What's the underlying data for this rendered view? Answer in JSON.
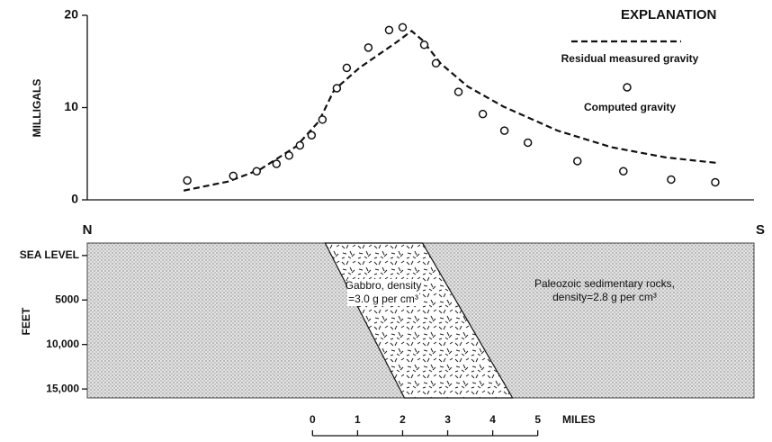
{
  "chart_data": {
    "type": "line",
    "y_label": "MILLIGALS",
    "ylim": [
      0,
      20
    ],
    "yticks": [
      0,
      10,
      20
    ],
    "xlim": [
      -5,
      9.8
    ],
    "legend_title": "EXPLANATION",
    "series": [
      {
        "name": "Residual measured gravity",
        "style": "dashed",
        "color": "#111111",
        "x": [
          -2.86,
          -1.86,
          -1.16,
          -0.36,
          0.14,
          0.48,
          1.04,
          1.84,
          2.2,
          2.44,
          2.84,
          3.44,
          4.24,
          5.44,
          6.64,
          7.84,
          8.98
        ],
        "values": [
          1.0,
          2.0,
          3.3,
          5.8,
          8.5,
          11.9,
          14.3,
          17.0,
          18.3,
          17.3,
          14.8,
          12.3,
          10.1,
          7.5,
          5.7,
          4.6,
          4.0
        ]
      },
      {
        "name": "Computed gravity",
        "style": "circle",
        "color": "#111111",
        "x": [
          -2.78,
          -1.76,
          -1.24,
          -0.8,
          -0.52,
          -0.28,
          -0.02,
          0.22,
          0.54,
          0.76,
          1.24,
          1.7,
          2.0,
          2.48,
          2.74,
          3.24,
          3.78,
          4.26,
          4.78,
          5.88,
          6.9,
          7.96,
          8.94
        ],
        "values": [
          2.1,
          2.6,
          3.1,
          3.9,
          4.8,
          5.9,
          7.0,
          8.7,
          12.1,
          14.3,
          16.5,
          18.4,
          18.7,
          16.8,
          14.8,
          11.7,
          9.3,
          7.5,
          6.2,
          4.2,
          3.1,
          2.2,
          1.9
        ]
      }
    ]
  },
  "section": {
    "y_label": "FEET",
    "ylim": [
      -1400,
      16000
    ],
    "yticks": [
      {
        "value": 0,
        "label": "SEA LEVEL"
      },
      5000,
      {
        "value": 10000,
        "label": "10,000"
      },
      {
        "value": 15000,
        "label": "15,000"
      }
    ],
    "left_label": "N",
    "right_label": "S",
    "gabbro": {
      "label_lines": [
        "Gabbro, density",
        "=3.0 g per cm³"
      ],
      "top_x": [
        0.28,
        2.44
      ],
      "bottom_x": [
        2.04,
        4.44
      ]
    },
    "host_label_lines": [
      "Paleozoic sedimentary rocks,",
      "density=2.8 g per cm³"
    ]
  },
  "scale": {
    "label": "MILES",
    "ticks": [
      0,
      1,
      2,
      3,
      4,
      5
    ]
  }
}
